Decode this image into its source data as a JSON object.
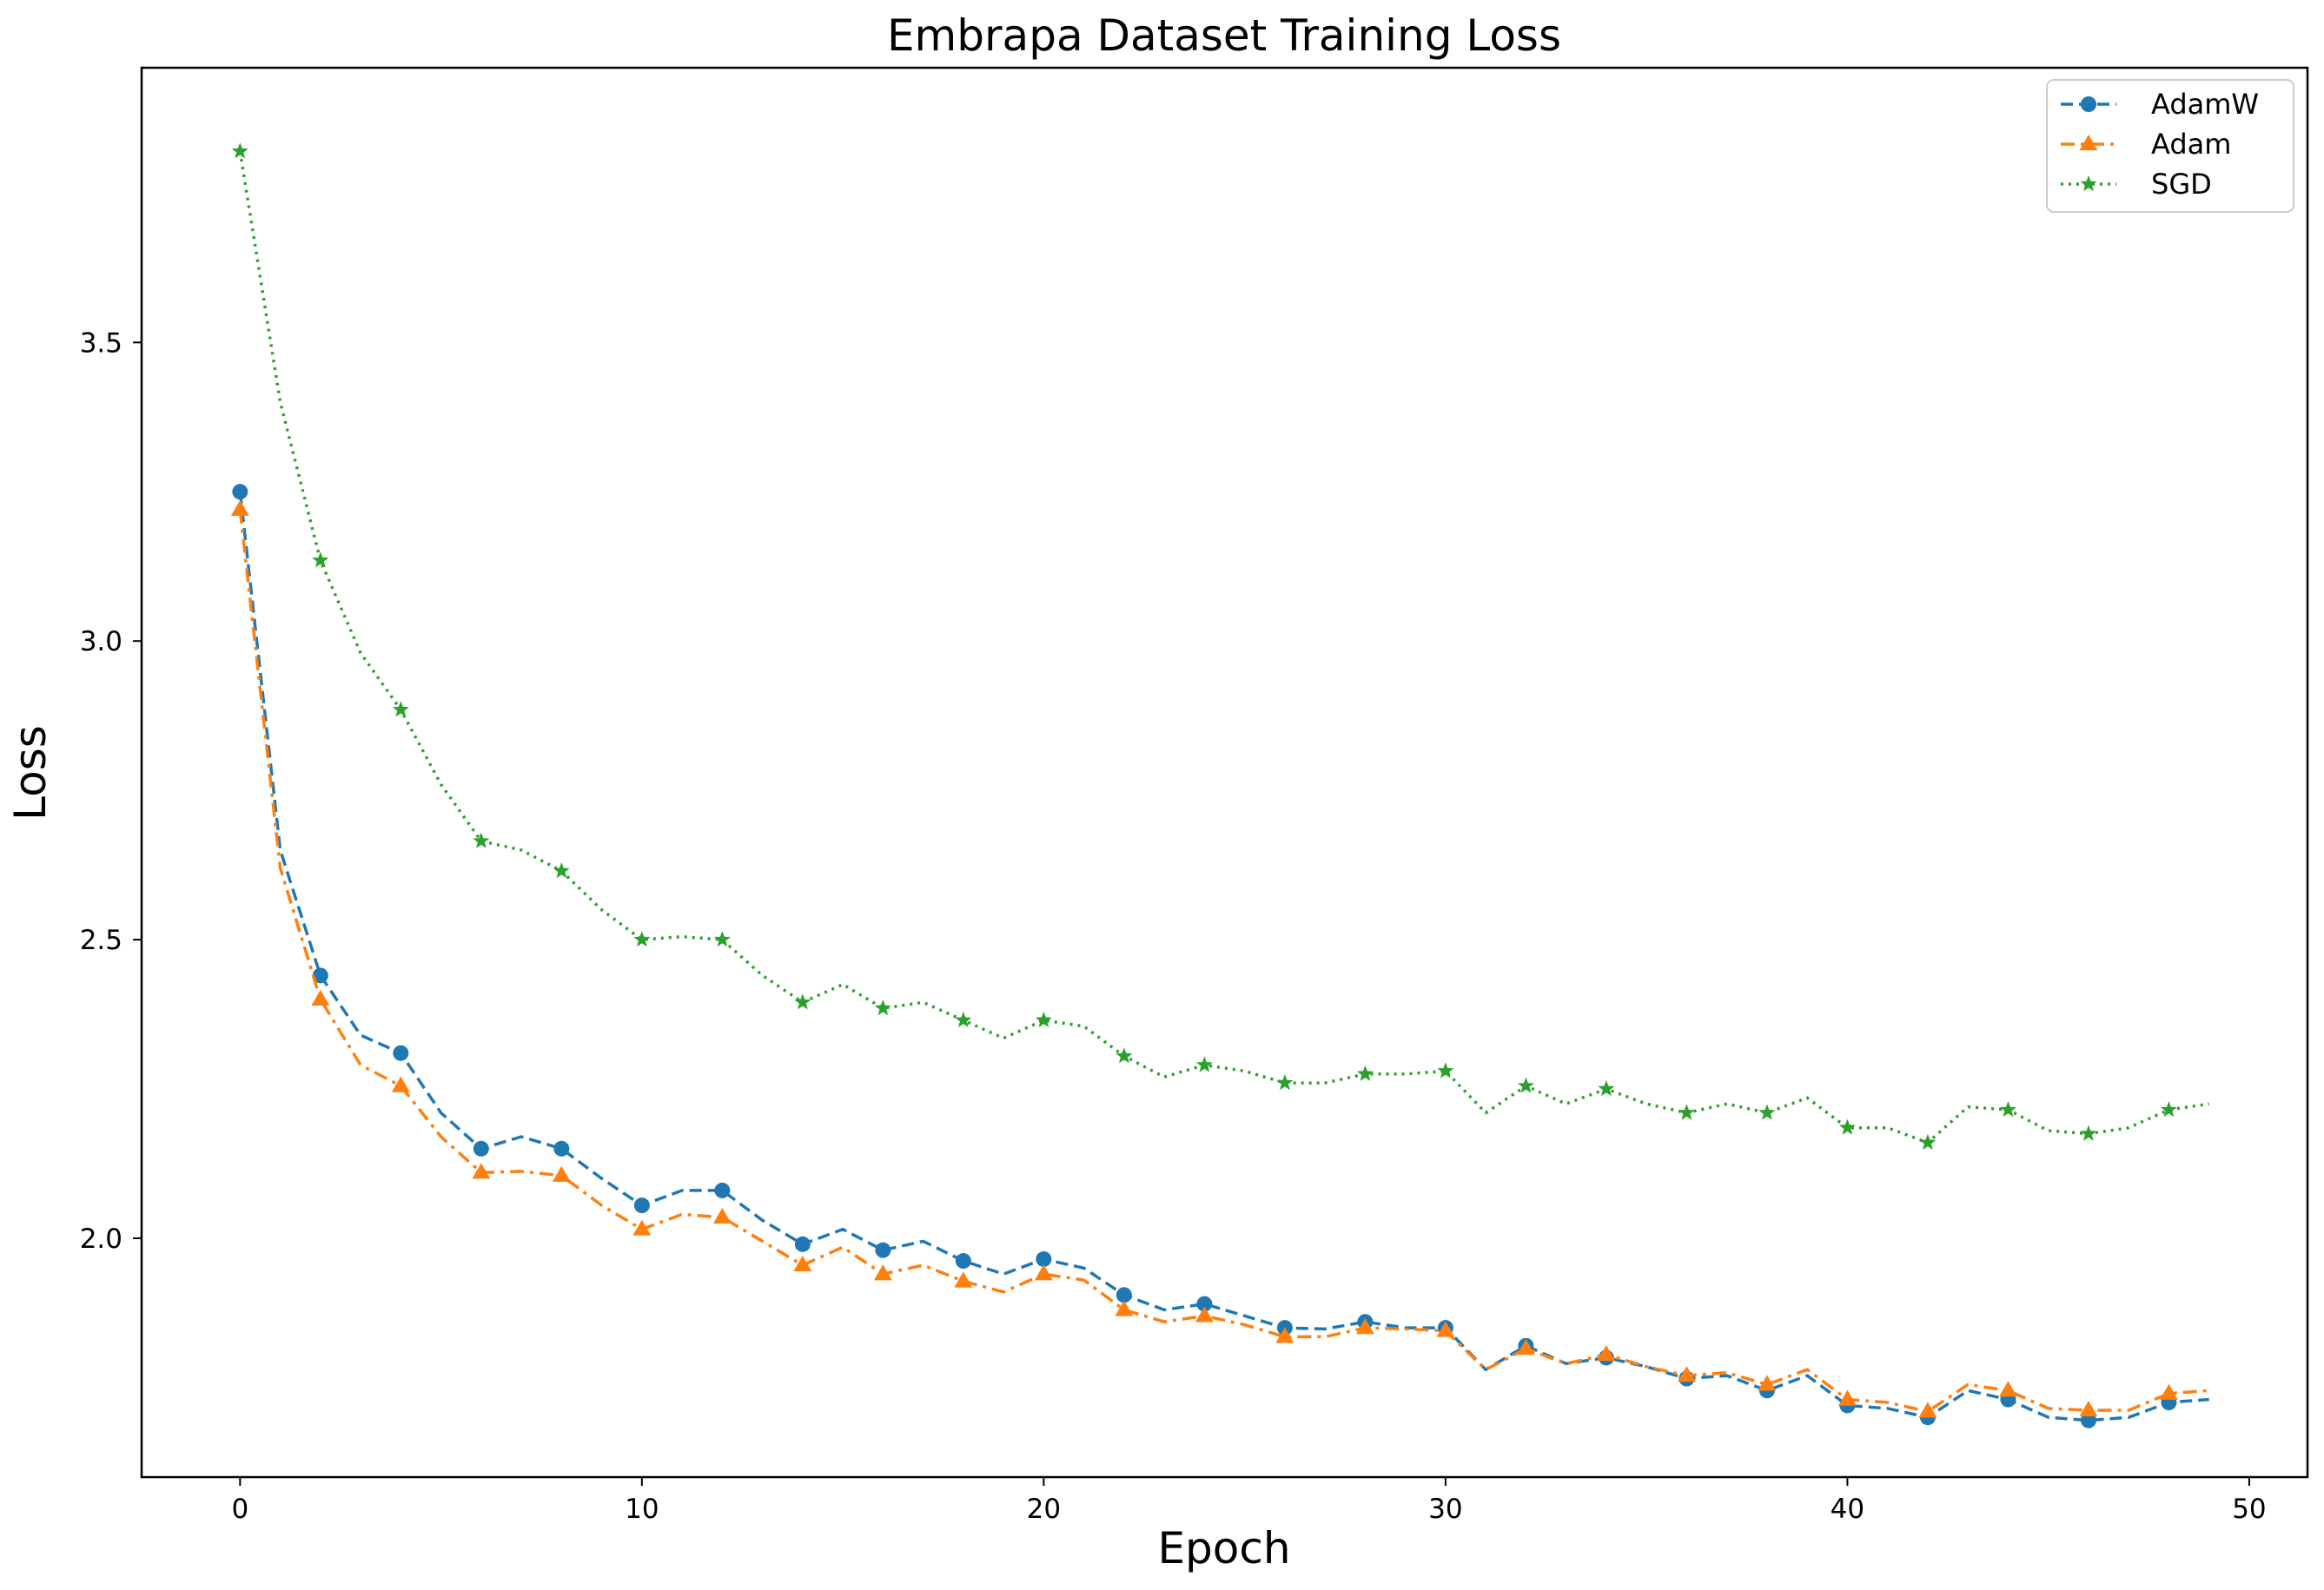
{
  "chart_data": {
    "type": "line",
    "title": "Embrapa Dataset Training Loss",
    "xlabel": "Epoch",
    "ylabel": "Loss",
    "xlim": [
      -2.45,
      51.45
    ],
    "ylim": [
      1.6,
      3.96
    ],
    "xticks": [
      0,
      10,
      20,
      30,
      40,
      50
    ],
    "xtick_labels": [
      "0",
      "10",
      "20",
      "30",
      "40",
      "50"
    ],
    "yticks": [
      2.0,
      2.5,
      3.0,
      3.5
    ],
    "ytick_labels": [
      "2.0",
      "2.5",
      "3.0",
      "3.5"
    ],
    "grid": false,
    "legend_position": "top-right",
    "x": [
      0,
      1,
      2,
      3,
      4,
      5,
      6,
      7,
      8,
      9,
      10,
      11,
      12,
      13,
      14,
      15,
      16,
      17,
      18,
      19,
      20,
      21,
      22,
      23,
      24,
      25,
      26,
      27,
      28,
      29,
      30,
      31,
      32,
      33,
      34,
      35,
      36,
      37,
      38,
      39,
      40,
      41,
      42,
      43,
      44,
      45,
      46,
      47,
      48,
      49
    ],
    "series": [
      {
        "name": "AdamW",
        "color": "#1f77b4",
        "marker": "circle",
        "linestyle": "dashed",
        "values": [
          3.25,
          2.65,
          2.44,
          2.34,
          2.31,
          2.21,
          2.15,
          2.17,
          2.15,
          2.1,
          2.055,
          2.08,
          2.08,
          2.03,
          1.99,
          2.015,
          1.98,
          1.995,
          1.962,
          1.94,
          1.965,
          1.95,
          1.905,
          1.88,
          1.89,
          1.87,
          1.85,
          1.848,
          1.86,
          1.85,
          1.85,
          1.78,
          1.82,
          1.79,
          1.8,
          1.785,
          1.765,
          1.77,
          1.745,
          1.77,
          1.72,
          1.715,
          1.7,
          1.745,
          1.73,
          1.7,
          1.695,
          1.7,
          1.725,
          1.73
        ]
      },
      {
        "name": "Adam",
        "color": "#ff7f0e",
        "marker": "triangle",
        "linestyle": "dashdot",
        "values": [
          3.22,
          2.62,
          2.4,
          2.29,
          2.255,
          2.17,
          2.11,
          2.112,
          2.105,
          2.055,
          2.015,
          2.04,
          2.035,
          1.995,
          1.955,
          1.985,
          1.94,
          1.955,
          1.928,
          1.91,
          1.94,
          1.93,
          1.88,
          1.86,
          1.87,
          1.855,
          1.835,
          1.835,
          1.85,
          1.848,
          1.845,
          1.78,
          1.815,
          1.79,
          1.805,
          1.785,
          1.77,
          1.775,
          1.755,
          1.78,
          1.73,
          1.725,
          1.71,
          1.755,
          1.745,
          1.715,
          1.712,
          1.712,
          1.74,
          1.745
        ]
      },
      {
        "name": "SGD",
        "color": "#2ca02c",
        "marker": "star",
        "linestyle": "dotted",
        "values": [
          3.82,
          3.4,
          3.135,
          2.98,
          2.885,
          2.76,
          2.665,
          2.65,
          2.615,
          2.55,
          2.5,
          2.505,
          2.5,
          2.44,
          2.395,
          2.425,
          2.385,
          2.395,
          2.365,
          2.335,
          2.365,
          2.355,
          2.305,
          2.27,
          2.29,
          2.28,
          2.26,
          2.26,
          2.275,
          2.275,
          2.28,
          2.21,
          2.255,
          2.225,
          2.25,
          2.225,
          2.21,
          2.225,
          2.21,
          2.235,
          2.185,
          2.185,
          2.16,
          2.22,
          2.215,
          2.18,
          2.175,
          2.185,
          2.215,
          2.225
        ]
      }
    ]
  }
}
